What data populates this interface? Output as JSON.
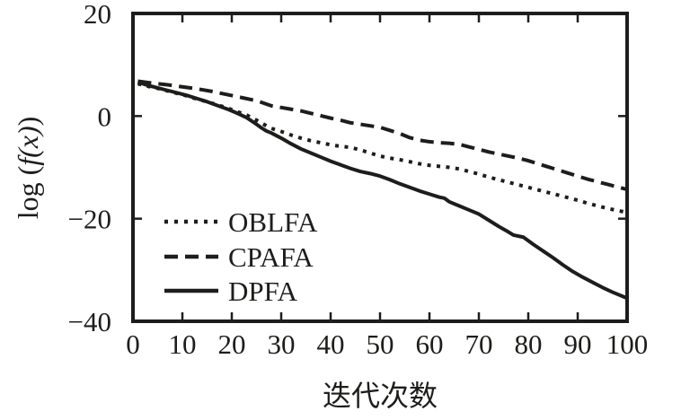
{
  "figure": {
    "background": "#ffffff",
    "line_color": "#1d1d1b"
  },
  "chart_data": {
    "type": "line",
    "title": "",
    "xlabel": "迭代次数",
    "ylabel": "log (f(x))",
    "ylabel_parts": {
      "pre": "log (",
      "italic": "f(x)",
      "post": ")"
    },
    "xlim": [
      0,
      100
    ],
    "ylim": [
      -40,
      20
    ],
    "x_ticks": [
      0,
      10,
      20,
      30,
      40,
      50,
      60,
      70,
      80,
      90,
      100
    ],
    "y_ticks": [
      -40,
      -20,
      0,
      20
    ],
    "grid": false,
    "legend_position": "inside-lower-left",
    "series": [
      {
        "name": "OBLFA",
        "style": "dotted",
        "points": [
          [
            1,
            6.3
          ],
          [
            3,
            5.8
          ],
          [
            5,
            5.4
          ],
          [
            7,
            4.9
          ],
          [
            9,
            4.4
          ],
          [
            11,
            3.9
          ],
          [
            13,
            3.3
          ],
          [
            15,
            2.8
          ],
          [
            17,
            2.2
          ],
          [
            19,
            1.6
          ],
          [
            21,
            0.9
          ],
          [
            23,
            0.2
          ],
          [
            25,
            -0.8
          ],
          [
            27,
            -1.9
          ],
          [
            28,
            -2.4
          ],
          [
            30,
            -3.0
          ],
          [
            32,
            -3.7
          ],
          [
            34,
            -4.3
          ],
          [
            36,
            -4.8
          ],
          [
            38,
            -5.2
          ],
          [
            40,
            -5.6
          ],
          [
            42,
            -5.9
          ],
          [
            44,
            -6.1
          ],
          [
            46,
            -6.6
          ],
          [
            48,
            -7.2
          ],
          [
            50,
            -7.8
          ],
          [
            52,
            -8.2
          ],
          [
            54,
            -8.5
          ],
          [
            56,
            -8.9
          ],
          [
            58,
            -9.3
          ],
          [
            60,
            -9.6
          ],
          [
            62,
            -9.8
          ],
          [
            64,
            -10.0
          ],
          [
            66,
            -10.3
          ],
          [
            68,
            -10.8
          ],
          [
            70,
            -11.3
          ],
          [
            72,
            -11.9
          ],
          [
            74,
            -12.4
          ],
          [
            76,
            -12.9
          ],
          [
            78,
            -13.4
          ],
          [
            80,
            -13.9
          ],
          [
            82,
            -14.4
          ],
          [
            84,
            -14.9
          ],
          [
            86,
            -15.4
          ],
          [
            88,
            -15.9
          ],
          [
            90,
            -16.4
          ],
          [
            92,
            -17.0
          ],
          [
            94,
            -17.5
          ],
          [
            96,
            -18.0
          ],
          [
            98,
            -18.4
          ],
          [
            100,
            -18.8
          ]
        ]
      },
      {
        "name": "CPAFA",
        "style": "dashed",
        "points": [
          [
            1,
            6.8
          ],
          [
            4,
            6.4
          ],
          [
            7,
            6.1
          ],
          [
            10,
            5.7
          ],
          [
            13,
            5.3
          ],
          [
            16,
            4.8
          ],
          [
            19,
            4.2
          ],
          [
            22,
            3.6
          ],
          [
            25,
            3.0
          ],
          [
            28,
            2.0
          ],
          [
            31,
            1.5
          ],
          [
            34,
            1.0
          ],
          [
            37,
            0.3
          ],
          [
            40,
            -0.4
          ],
          [
            42,
            -0.8
          ],
          [
            44,
            -1.3
          ],
          [
            46,
            -1.6
          ],
          [
            48,
            -1.9
          ],
          [
            50,
            -2.2
          ],
          [
            52,
            -2.8
          ],
          [
            54,
            -3.4
          ],
          [
            56,
            -4.2
          ],
          [
            58,
            -4.7
          ],
          [
            60,
            -5.0
          ],
          [
            62,
            -5.2
          ],
          [
            64,
            -5.3
          ],
          [
            66,
            -5.5
          ],
          [
            68,
            -6.0
          ],
          [
            70,
            -6.5
          ],
          [
            72,
            -7.0
          ],
          [
            74,
            -7.4
          ],
          [
            76,
            -7.8
          ],
          [
            78,
            -8.2
          ],
          [
            80,
            -8.7
          ],
          [
            82,
            -9.3
          ],
          [
            84,
            -9.9
          ],
          [
            86,
            -10.5
          ],
          [
            88,
            -11.1
          ],
          [
            90,
            -11.7
          ],
          [
            92,
            -12.3
          ],
          [
            94,
            -12.8
          ],
          [
            96,
            -13.3
          ],
          [
            98,
            -13.8
          ],
          [
            100,
            -14.3
          ]
        ]
      },
      {
        "name": "DPFA",
        "style": "solid",
        "points": [
          [
            1,
            6.6
          ],
          [
            3,
            6.0
          ],
          [
            5,
            5.5
          ],
          [
            7,
            5.0
          ],
          [
            9,
            4.5
          ],
          [
            11,
            4.0
          ],
          [
            13,
            3.4
          ],
          [
            15,
            2.8
          ],
          [
            17,
            2.1
          ],
          [
            19,
            1.4
          ],
          [
            21,
            0.6
          ],
          [
            23,
            -0.3
          ],
          [
            25,
            -1.6
          ],
          [
            26,
            -2.3
          ],
          [
            27,
            -2.9
          ],
          [
            28,
            -3.3
          ],
          [
            30,
            -4.3
          ],
          [
            32,
            -5.4
          ],
          [
            34,
            -6.4
          ],
          [
            36,
            -7.2
          ],
          [
            38,
            -8.0
          ],
          [
            40,
            -8.8
          ],
          [
            42,
            -9.5
          ],
          [
            44,
            -10.2
          ],
          [
            46,
            -10.8
          ],
          [
            48,
            -11.2
          ],
          [
            50,
            -11.7
          ],
          [
            52,
            -12.4
          ],
          [
            54,
            -13.2
          ],
          [
            56,
            -13.9
          ],
          [
            58,
            -14.6
          ],
          [
            60,
            -15.2
          ],
          [
            62,
            -15.8
          ],
          [
            63,
            -16.0
          ],
          [
            64,
            -16.7
          ],
          [
            66,
            -17.5
          ],
          [
            68,
            -18.3
          ],
          [
            70,
            -19.1
          ],
          [
            72,
            -20.3
          ],
          [
            74,
            -21.5
          ],
          [
            76,
            -22.6
          ],
          [
            77,
            -23.2
          ],
          [
            79,
            -23.6
          ],
          [
            81,
            -25.0
          ],
          [
            83,
            -26.3
          ],
          [
            85,
            -27.6
          ],
          [
            87,
            -29.0
          ],
          [
            89,
            -30.3
          ],
          [
            91,
            -31.4
          ],
          [
            93,
            -32.4
          ],
          [
            95,
            -33.4
          ],
          [
            97,
            -34.3
          ],
          [
            99,
            -35.1
          ],
          [
            100,
            -35.5
          ]
        ]
      }
    ]
  }
}
